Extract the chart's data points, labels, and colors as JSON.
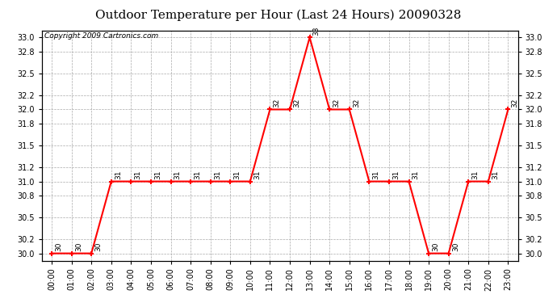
{
  "title": "Outdoor Temperature per Hour (Last 24 Hours) 20090328",
  "copyright": "Copyright 2009 Cartronics.com",
  "hours": [
    "00:00",
    "01:00",
    "02:00",
    "03:00",
    "04:00",
    "05:00",
    "06:00",
    "07:00",
    "08:00",
    "09:00",
    "10:00",
    "11:00",
    "12:00",
    "13:00",
    "14:00",
    "15:00",
    "16:00",
    "17:00",
    "18:00",
    "19:00",
    "20:00",
    "21:00",
    "22:00",
    "23:00"
  ],
  "temps": [
    30,
    30,
    30,
    31,
    31,
    31,
    31,
    31,
    31,
    31,
    31,
    32,
    32,
    33,
    32,
    32,
    31,
    31,
    31,
    30,
    30,
    31,
    31,
    32
  ],
  "line_color": "#ff0000",
  "marker": "+",
  "marker_size": 5,
  "marker_linewidth": 1.5,
  "line_width": 1.5,
  "bg_color": "#ffffff",
  "grid_color": "#aaaaaa",
  "ylim_min": 29.9,
  "ylim_max": 33.1,
  "title_fontsize": 11,
  "copyright_fontsize": 6.5,
  "annotation_fontsize": 6.5,
  "tick_fontsize": 7,
  "yticks": [
    30.0,
    30.2,
    30.5,
    30.8,
    31.0,
    31.2,
    31.5,
    31.8,
    32.0,
    32.2,
    32.5,
    32.8,
    33.0
  ]
}
